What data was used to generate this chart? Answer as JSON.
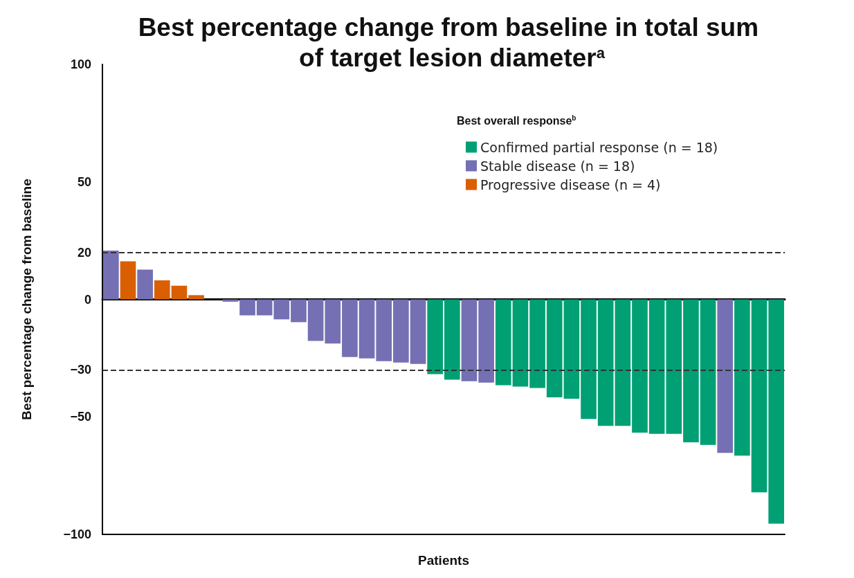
{
  "chart_data": {
    "type": "bar",
    "title": "Best percentage change from baseline in total sum of target lesion diameter$^{a}$",
    "xlabel": "Patients",
    "ylabel": "Best percentage change from baseline",
    "legend_title": "Best overall response$^{b}$",
    "categories": [
      null,
      null,
      null,
      null,
      null,
      null,
      null,
      null,
      null,
      null,
      null,
      null,
      null,
      null,
      null,
      null,
      null,
      null,
      null,
      null,
      null,
      null,
      null,
      null,
      null,
      null,
      null,
      null,
      null,
      null,
      null,
      null,
      null,
      null,
      null,
      null,
      null,
      null,
      null,
      null
    ],
    "series": [
      {
        "name": "Confirmed partial response (n = 18)",
        "color": "#00a074",
        "values": [
          null,
          null,
          null,
          null,
          null,
          null,
          null,
          null,
          null,
          null,
          null,
          null,
          null,
          null,
          null,
          null,
          null,
          null,
          null,
          -31.8,
          -34.2,
          null,
          null,
          -36.5,
          -37.1,
          -37.7,
          -41.7,
          -42.3,
          -50.9,
          -53.8,
          -53.8,
          -56.7,
          -57.2,
          -57.2,
          -60.8,
          -61.9,
          null,
          -66.5,
          -82.1,
          -95.4
        ]
      },
      {
        "name": "Stable disease (n = 18)",
        "color": "#7570b3",
        "values": [
          20.8,
          null,
          12.7,
          null,
          null,
          null,
          0,
          -1,
          -6.8,
          -6.8,
          -8.5,
          -9.7,
          -17.7,
          -18.8,
          -24.5,
          -25.1,
          -26.3,
          -26.9,
          -27.5,
          null,
          null,
          -34.8,
          -35.4,
          null,
          null,
          null,
          null,
          null,
          null,
          null,
          null,
          null,
          null,
          null,
          null,
          null,
          -65.3,
          null,
          null,
          null
        ]
      },
      {
        "name": "Progressive disease (n = 4)",
        "color": "#d95f02",
        "values": [
          null,
          16.2,
          null,
          8.1,
          5.8,
          1.8,
          null,
          null,
          null,
          null,
          null,
          null,
          null,
          null,
          null,
          null,
          null,
          null,
          null,
          null,
          null,
          null,
          null,
          null,
          null,
          null,
          null,
          null,
          null,
          null,
          null,
          null,
          null,
          null,
          null,
          null,
          null,
          null,
          null,
          null
        ]
      }
    ],
    "ylim": [
      -100,
      100
    ],
    "yticks": [
      100,
      50,
      20,
      0,
      -30,
      -50,
      -100
    ],
    "ref_lines": [
      {
        "axis": "y",
        "value": 20,
        "line_style": "dashed"
      },
      {
        "axis": "y",
        "value": -30,
        "line_style": "dashed"
      }
    ],
    "grid": false,
    "legend": "top right"
  }
}
